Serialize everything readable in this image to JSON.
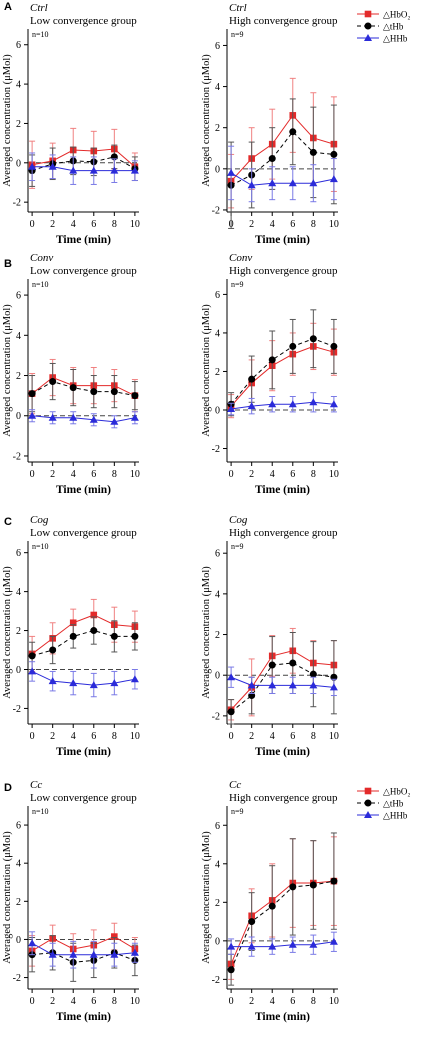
{
  "figure": {
    "panel_letters": [
      "A",
      "B",
      "C",
      "D"
    ],
    "legend": [
      {
        "label": "△HbO₂",
        "color": "#e32a2a",
        "marker": "square",
        "dash": "solid"
      },
      {
        "label": "△tHb",
        "color": "#000000",
        "marker": "circle",
        "dash": "dashed"
      },
      {
        "label": "△HHb",
        "color": "#2b2bd9",
        "marker": "triangle",
        "dash": "solid"
      }
    ],
    "colors": {
      "hbo2": "#e32a2a",
      "thb": "#000000",
      "hhb": "#2b2bd9",
      "error_hbo2": "#f08080",
      "error_thb": "#555555",
      "error_hhb": "#7a7ae6"
    }
  },
  "chart_data": [
    {
      "type": "line",
      "panel": "A",
      "condition": "Ctrl",
      "group": "Low convergence group",
      "n": "n=10",
      "xlabel": "Time (min)",
      "ylabel": "Averaged concentration (μMol)",
      "x": [
        0,
        2,
        4,
        6,
        8,
        10
      ],
      "xticks": [
        "0",
        "2",
        "4",
        "6",
        "8",
        "10"
      ],
      "yticks": [
        "-2",
        "0",
        "2",
        "4",
        "6"
      ],
      "ylim": [
        -2.5,
        6.8
      ],
      "zero_line": true,
      "series": [
        {
          "name": "△HbO₂",
          "values": [
            -0.1,
            0.1,
            0.65,
            0.6,
            0.7,
            -0.2
          ],
          "err": [
            1.2,
            0.9,
            1.1,
            1.0,
            1.0,
            0.7
          ]
        },
        {
          "name": "△tHb",
          "values": [
            -0.4,
            -0.05,
            0.1,
            0.05,
            0.3,
            -0.3
          ],
          "err": [
            0.8,
            0.8,
            0.7,
            0.7,
            0.6,
            0.6
          ]
        },
        {
          "name": "△HHb",
          "values": [
            -0.2,
            -0.2,
            -0.4,
            -0.4,
            -0.4,
            -0.4
          ],
          "err": [
            0.7,
            0.6,
            0.7,
            0.7,
            0.6,
            0.5
          ]
        }
      ]
    },
    {
      "type": "line",
      "panel": "A",
      "condition": "Ctrl",
      "group": "High convergence group",
      "n": "n=9",
      "xlabel": "Time (min)",
      "ylabel": "Averaged concentration (μMol)",
      "x": [
        0,
        2,
        4,
        6,
        8,
        10
      ],
      "xticks": [
        "0",
        "2",
        "4",
        "6",
        "8",
        "10"
      ],
      "yticks": [
        "-2",
        "0",
        "2",
        "4",
        "6"
      ],
      "ylim": [
        -2.1,
        6.8
      ],
      "zero_line": true,
      "legend": "top-right",
      "series": [
        {
          "name": "△HbO₂",
          "values": [
            -0.6,
            0.5,
            1.2,
            2.6,
            1.5,
            1.2
          ],
          "err": [
            1.3,
            1.5,
            1.7,
            1.8,
            2.2,
            2.3
          ]
        },
        {
          "name": "△tHb",
          "values": [
            -0.8,
            -0.3,
            0.5,
            1.8,
            0.8,
            0.7
          ],
          "err": [
            2.1,
            1.6,
            1.5,
            1.6,
            2.2,
            2.4
          ]
        },
        {
          "name": "△HHb",
          "values": [
            -0.2,
            -0.8,
            -0.7,
            -0.7,
            -0.7,
            -0.5
          ],
          "err": [
            1.3,
            0.8,
            0.8,
            0.8,
            0.9,
            1.0
          ]
        }
      ]
    },
    {
      "type": "line",
      "panel": "B",
      "condition": "Conv",
      "group": "Low convergence group",
      "n": "n=10",
      "xlabel": "Time (min)",
      "ylabel": "Averaged concentration (μMol)",
      "x": [
        0,
        2,
        4,
        6,
        8,
        10
      ],
      "xticks": [
        "0",
        "2",
        "4",
        "6",
        "8",
        "10"
      ],
      "yticks": [
        "-2",
        "0",
        "2",
        "4",
        "6"
      ],
      "ylim": [
        -2.3,
        6.8
      ],
      "zero_line": true,
      "series": [
        {
          "name": "△HbO₂",
          "values": [
            1.1,
            1.9,
            1.5,
            1.5,
            1.5,
            1.0
          ],
          "err": [
            1.0,
            0.9,
            0.9,
            0.9,
            0.8,
            0.8
          ]
        },
        {
          "name": "△tHb",
          "values": [
            1.1,
            1.7,
            1.4,
            1.2,
            1.2,
            1.0
          ],
          "err": [
            0.9,
            0.9,
            0.9,
            0.8,
            0.8,
            0.7
          ]
        },
        {
          "name": "△HHb",
          "values": [
            0.0,
            -0.1,
            -0.1,
            -0.2,
            -0.3,
            -0.1
          ],
          "err": [
            0.3,
            0.3,
            0.3,
            0.3,
            0.3,
            0.3
          ]
        }
      ]
    },
    {
      "type": "line",
      "panel": "B",
      "condition": "Conv",
      "group": "High convergence group",
      "n": "n=9",
      "xlabel": "Time (min)",
      "ylabel": "Averaged concentration (μMol)",
      "x": [
        0,
        2,
        4,
        6,
        8,
        10
      ],
      "xticks": [
        "0",
        "2",
        "4",
        "6",
        "8",
        "10"
      ],
      "yticks": [
        "-2",
        "0",
        "2",
        "4",
        "6"
      ],
      "ylim": [
        -2.7,
        6.8
      ],
      "zero_line": true,
      "series": [
        {
          "name": "△HbO₂",
          "values": [
            0.2,
            1.4,
            2.3,
            2.9,
            3.3,
            3.0
          ],
          "err": [
            0.6,
            1.2,
            1.3,
            1.1,
            1.2,
            1.2
          ]
        },
        {
          "name": "△tHb",
          "values": [
            0.3,
            1.6,
            2.6,
            3.3,
            3.7,
            3.3
          ],
          "err": [
            0.6,
            1.2,
            1.5,
            1.4,
            1.5,
            1.4
          ]
        },
        {
          "name": "△HHb",
          "values": [
            0.05,
            0.2,
            0.3,
            0.3,
            0.4,
            0.3
          ],
          "err": [
            0.3,
            0.4,
            0.4,
            0.4,
            0.5,
            0.4
          ]
        }
      ]
    },
    {
      "type": "line",
      "panel": "C",
      "condition": "Cog",
      "group": "Low convergence group",
      "n": "n=10",
      "xlabel": "Time (min)",
      "ylabel": "Averaged concentration (μMol)",
      "x": [
        0,
        2,
        4,
        6,
        8,
        10
      ],
      "xticks": [
        "0",
        "2",
        "4",
        "6",
        "8",
        "10"
      ],
      "yticks": [
        "-2",
        "0",
        "2",
        "4",
        "6"
      ],
      "ylim": [
        -2.8,
        6.6
      ],
      "zero_line": true,
      "series": [
        {
          "name": "△HbO₂",
          "values": [
            0.8,
            1.6,
            2.4,
            2.8,
            2.3,
            2.2
          ],
          "err": [
            0.9,
            0.8,
            0.7,
            0.8,
            0.9,
            0.8
          ]
        },
        {
          "name": "△tHb",
          "values": [
            0.7,
            1.0,
            1.7,
            2.0,
            1.7,
            1.7
          ],
          "err": [
            0.7,
            0.7,
            0.6,
            0.7,
            0.8,
            0.7
          ]
        },
        {
          "name": "△HHb",
          "values": [
            -0.1,
            -0.6,
            -0.7,
            -0.8,
            -0.7,
            -0.5
          ],
          "err": [
            0.5,
            0.5,
            0.6,
            0.6,
            0.6,
            0.5
          ]
        }
      ]
    },
    {
      "type": "line",
      "panel": "C",
      "condition": "Cog",
      "group": "High convergence group",
      "n": "n=9",
      "xlabel": "Time (min)",
      "ylabel": "Averaged concentration (μMol)",
      "x": [
        0,
        2,
        4,
        6,
        8,
        10
      ],
      "xticks": [
        "0",
        "2",
        "4",
        "6",
        "8",
        "10"
      ],
      "yticks": [
        "-2",
        "0",
        "2",
        "4",
        "6"
      ],
      "ylim": [
        -2.4,
        6.6
      ],
      "zero_line": true,
      "series": [
        {
          "name": "△HbO₂",
          "values": [
            -1.7,
            -0.6,
            0.95,
            1.2,
            0.6,
            0.5
          ],
          "err": [
            0.5,
            1.4,
            1.0,
            1.1,
            1.1,
            1.2
          ]
        },
        {
          "name": "△tHb",
          "values": [
            -1.8,
            -1.0,
            0.5,
            0.6,
            0.05,
            -0.1
          ],
          "err": [
            0.6,
            0.9,
            1.4,
            1.5,
            1.6,
            1.8
          ]
        },
        {
          "name": "△HHb",
          "values": [
            -0.1,
            -0.5,
            -0.5,
            -0.5,
            -0.5,
            -0.6
          ],
          "err": [
            0.5,
            0.4,
            0.4,
            0.4,
            0.4,
            0.4
          ]
        }
      ]
    },
    {
      "type": "line",
      "panel": "D",
      "condition": "Cc",
      "group": "Low convergence group",
      "n": "n=10",
      "xlabel": "Time (min)",
      "ylabel": "Averaged concentration (μMol)",
      "x": [
        0,
        2,
        4,
        6,
        8,
        10
      ],
      "xticks": [
        "0",
        "2",
        "4",
        "6",
        "8",
        "10"
      ],
      "yticks": [
        "-2",
        "0",
        "2",
        "4",
        "6"
      ],
      "ylim": [
        -2.6,
        7.0
      ],
      "zero_line": true,
      "series": [
        {
          "name": "△HbO₂",
          "values": [
            -0.6,
            0.05,
            -0.5,
            -0.3,
            0.15,
            -0.5
          ],
          "err": [
            0.8,
            0.7,
            0.8,
            0.8,
            0.7,
            0.6
          ]
        },
        {
          "name": "△tHb",
          "values": [
            -0.8,
            -0.7,
            -1.2,
            -1.1,
            -0.7,
            -1.1
          ],
          "err": [
            0.9,
            0.9,
            1.0,
            0.9,
            0.8,
            0.8
          ]
        },
        {
          "name": "△HHb",
          "values": [
            -0.2,
            -0.8,
            -0.8,
            -0.8,
            -0.8,
            -0.7
          ],
          "err": [
            0.6,
            0.6,
            0.7,
            0.7,
            0.6,
            0.5
          ]
        }
      ]
    },
    {
      "type": "line",
      "panel": "D",
      "condition": "Cc",
      "group": "High convergence group",
      "n": "n=9",
      "xlabel": "Time (min)",
      "ylabel": "Averaged concentration (μMol)",
      "x": [
        0,
        2,
        4,
        6,
        8,
        10
      ],
      "xticks": [
        "0",
        "2",
        "4",
        "6",
        "8",
        "10"
      ],
      "yticks": [
        "-2",
        "0",
        "2",
        "4",
        "6"
      ],
      "ylim": [
        -2.5,
        7.0
      ],
      "zero_line": true,
      "legend": "top-right",
      "series": [
        {
          "name": "△HbO₂",
          "values": [
            -1.2,
            1.3,
            2.1,
            3.0,
            3.0,
            3.1
          ],
          "err": [
            0.8,
            1.4,
            1.9,
            2.3,
            2.2,
            2.3
          ]
        },
        {
          "name": "△tHb",
          "values": [
            -1.5,
            1.0,
            1.8,
            2.8,
            2.9,
            3.1
          ],
          "err": [
            0.8,
            1.5,
            2.1,
            2.5,
            2.3,
            2.5
          ]
        },
        {
          "name": "△HHb",
          "values": [
            -0.3,
            -0.3,
            -0.3,
            -0.2,
            -0.2,
            -0.05
          ],
          "err": [
            0.4,
            0.5,
            0.4,
            0.4,
            0.5,
            0.5
          ]
        }
      ]
    }
  ]
}
